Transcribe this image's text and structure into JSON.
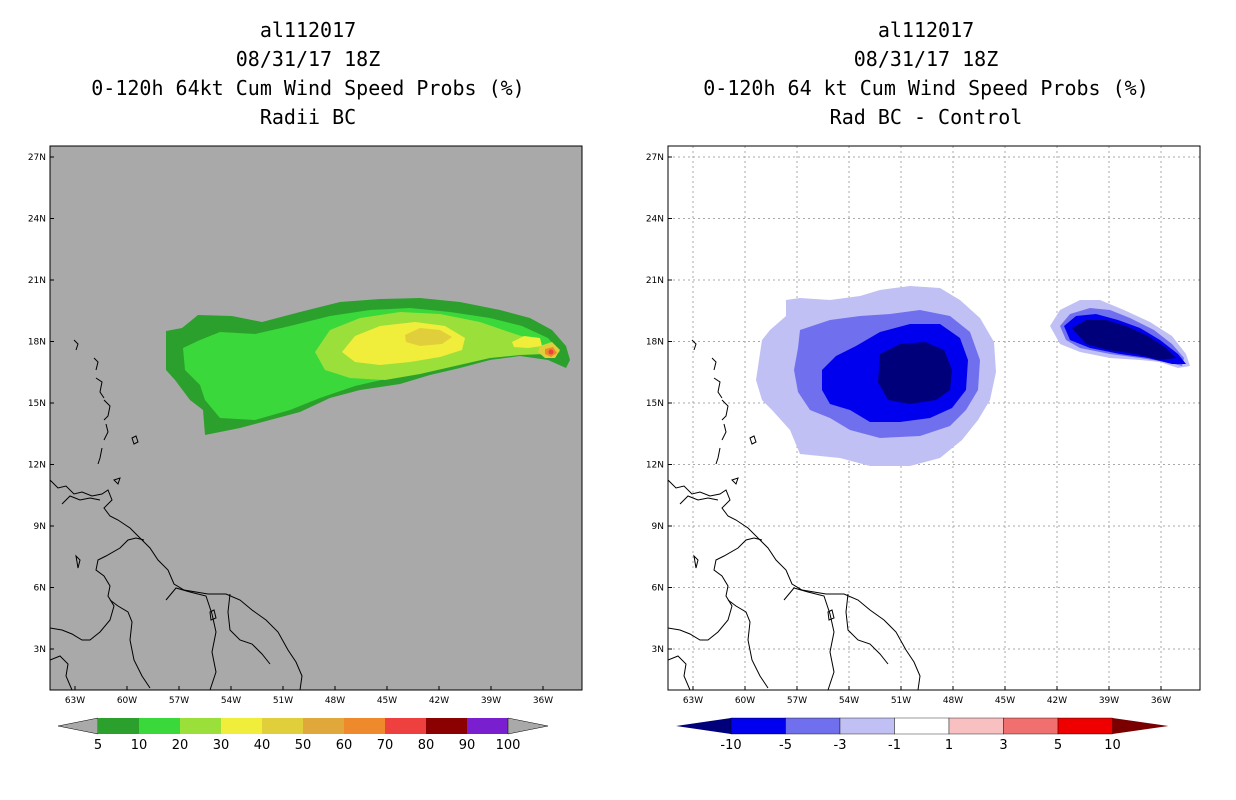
{
  "left_panel": {
    "title_line1": "al112017",
    "title_line2": "08/31/17 18Z",
    "title_line3": "0-120h 64kt Cum Wind Speed Probs (%)",
    "title_line4": "Radii BC",
    "background": "#a9a9a9",
    "colorbar": {
      "colors": [
        "#2ca02c",
        "#3ad83a",
        "#9be03a",
        "#f0ee3a",
        "#e0cf3a",
        "#e0a83a",
        "#ee8a2c",
        "#ef4040",
        "#8b0000",
        "#7a1fd0"
      ],
      "labels": [
        "5",
        "10",
        "20",
        "30",
        "40",
        "50",
        "60",
        "70",
        "80",
        "90",
        "100"
      ],
      "end_color": "#a9a9a9"
    }
  },
  "right_panel": {
    "title_line1": "al112017",
    "title_line2": "08/31/17 18Z",
    "title_line3": "0-120h 64 kt Cum Wind Speed Probs (%)",
    "title_line4": "Rad BC - Control",
    "background": "#ffffff",
    "colorbar": {
      "colors": [
        "#00007a",
        "#0000ee",
        "#7070ee",
        "#c0c0f5",
        "#ffffff",
        "#f8c0c0",
        "#f07070",
        "#ee0000",
        "#7a0000"
      ],
      "labels": [
        "-10",
        "-5",
        "-3",
        "-1",
        "1",
        "3",
        "5",
        "10"
      ]
    }
  },
  "axes": {
    "lat_labels": [
      "27N",
      "24N",
      "21N",
      "18N",
      "15N",
      "12N",
      "9N",
      "6N",
      "3N"
    ],
    "lon_labels": [
      "63W",
      "60W",
      "57W",
      "54W",
      "51W",
      "48W",
      "45W",
      "42W",
      "39W",
      "36W"
    ]
  },
  "map_extent": {
    "lon_min": -65,
    "lon_max": -34,
    "lat_min": 1,
    "lat_max": 27.5
  }
}
